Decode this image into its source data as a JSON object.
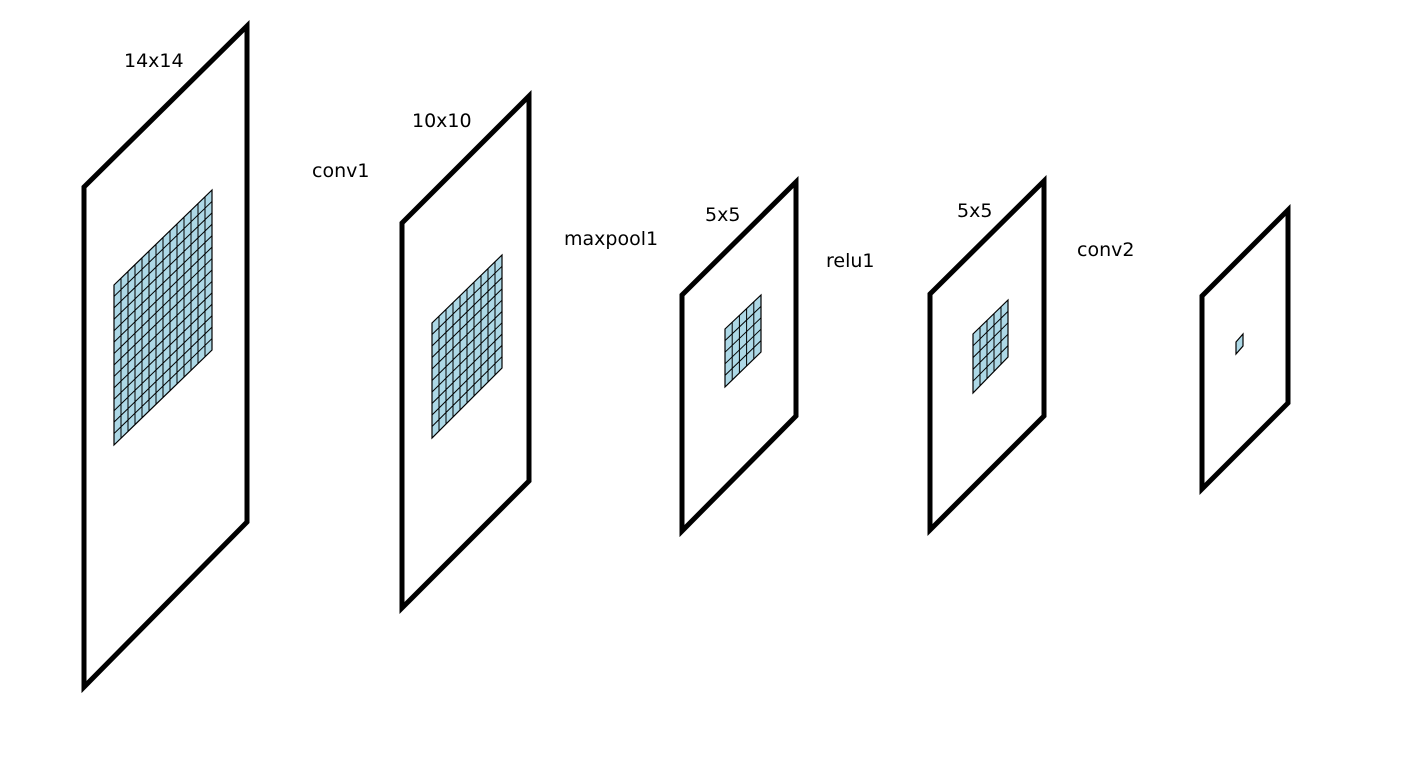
{
  "colors": {
    "frame_stroke": "#000000",
    "grid_fill": "#add8e6",
    "grid_line": "#000000",
    "background": "#ffffff"
  },
  "layers": [
    {
      "size_label": "14x14",
      "grid_cells": 14
    },
    {
      "size_label": "10x10",
      "grid_cells": 10
    },
    {
      "size_label": "5x5",
      "grid_cells": 5
    },
    {
      "size_label": "5x5",
      "grid_cells": 5
    },
    {
      "size_label": "",
      "grid_cells": 1
    }
  ],
  "operations": [
    {
      "label": "conv1"
    },
    {
      "label": "maxpool1"
    },
    {
      "label": "relu1"
    },
    {
      "label": "conv2"
    }
  ]
}
